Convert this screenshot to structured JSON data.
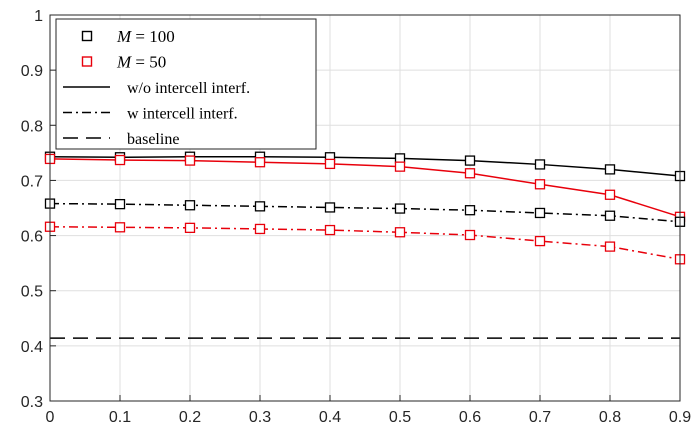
{
  "chart_data": {
    "type": "line",
    "title": "",
    "xlabel": "",
    "ylabel": "",
    "x": [
      0,
      0.1,
      0.2,
      0.3,
      0.4,
      0.5,
      0.6,
      0.7,
      0.8,
      0.9
    ],
    "xlim": [
      0,
      0.9
    ],
    "ylim": [
      0.3,
      1
    ],
    "x_ticks": [
      "0",
      "0.1",
      "0.2",
      "0.3",
      "0.4",
      "0.5",
      "0.6",
      "0.7",
      "0.8",
      "0.9"
    ],
    "y_ticks": [
      "0.3",
      "0.4",
      "0.5",
      "0.6",
      "0.7",
      "0.8",
      "0.9",
      "1"
    ],
    "grid": true,
    "legend_position": "top-left",
    "legend": [
      {
        "var": "M",
        "eq": " = 100",
        "style": "marker",
        "color": "#000000"
      },
      {
        "var": "M",
        "eq": " = 50",
        "style": "marker",
        "color": "#e8000b"
      },
      {
        "label": "w/o intercell interf.",
        "style": "solid",
        "color": "#000000"
      },
      {
        "label": "w intercell interf.",
        "style": "dashdot",
        "color": "#000000"
      },
      {
        "label": "baseline",
        "style": "dashed",
        "color": "#000000"
      }
    ],
    "series": [
      {
        "group": "M = 100",
        "line": "solid",
        "color": "#000000",
        "marker": "square",
        "values": [
          0.743,
          0.742,
          0.743,
          0.743,
          0.742,
          0.74,
          0.736,
          0.729,
          0.72,
          0.708
        ]
      },
      {
        "group": "M = 50",
        "line": "solid",
        "color": "#e8000b",
        "marker": "square",
        "values": [
          0.739,
          0.737,
          0.736,
          0.733,
          0.73,
          0.725,
          0.713,
          0.693,
          0.674,
          0.634
        ]
      },
      {
        "group": "M = 100",
        "line": "dashdot",
        "color": "#000000",
        "marker": "square",
        "values": [
          0.658,
          0.657,
          0.655,
          0.653,
          0.651,
          0.649,
          0.646,
          0.641,
          0.636,
          0.625
        ]
      },
      {
        "group": "M = 50",
        "line": "dashdot",
        "color": "#e8000b",
        "marker": "square",
        "values": [
          0.616,
          0.615,
          0.614,
          0.612,
          0.61,
          0.606,
          0.601,
          0.59,
          0.58,
          0.557
        ]
      },
      {
        "group": "baseline",
        "line": "dashed",
        "color": "#000000",
        "marker": "none",
        "values": [
          0.414,
          0.414,
          0.414,
          0.414,
          0.414,
          0.414,
          0.414,
          0.414,
          0.414,
          0.414
        ]
      }
    ]
  }
}
